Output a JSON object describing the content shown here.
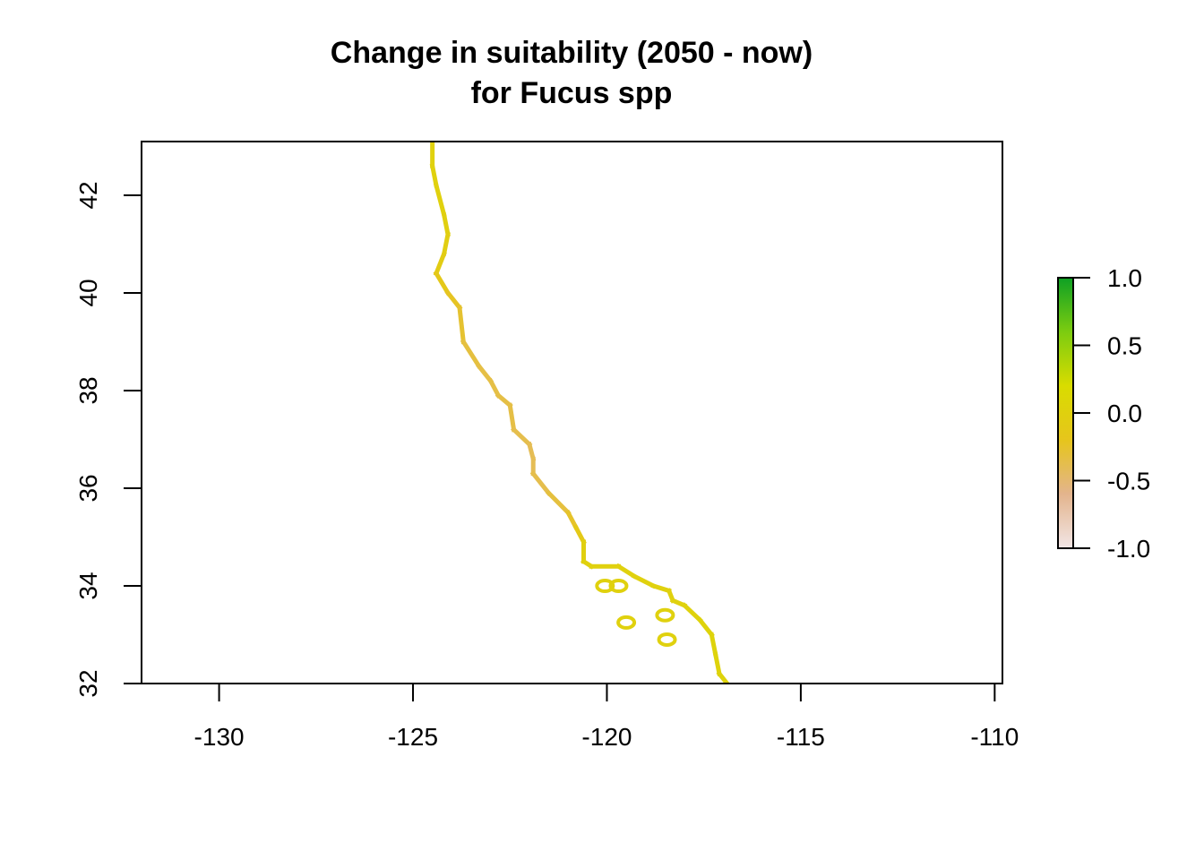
{
  "chart_data": {
    "type": "heatmap",
    "title": "Change in suitability (2050 - now)",
    "subtitle": "for Fucus spp",
    "xlabel": "",
    "ylabel": "",
    "xlim": [
      -132,
      -109.8
    ],
    "ylim": [
      32,
      43.1
    ],
    "x_ticks": [
      -130,
      -125,
      -120,
      -115,
      -110
    ],
    "x_tick_labels": [
      "-130",
      "-125",
      "-120",
      "-115",
      "-110"
    ],
    "y_ticks": [
      32,
      34,
      36,
      38,
      40,
      42
    ],
    "y_tick_labels": [
      "32",
      "34",
      "36",
      "38",
      "40",
      "42"
    ],
    "grid": false,
    "legend": {
      "position": "right",
      "range": [
        -1.0,
        1.0
      ],
      "ticks": [
        1.0,
        0.5,
        0.0,
        -0.5,
        -1.0
      ],
      "tick_labels": [
        "1.0",
        "0.5",
        "0.0",
        "-0.5",
        "-1.0"
      ],
      "colors": [
        "#f2e6e6",
        "#e3b48d",
        "#e6c51c",
        "#d9dc00",
        "#7ccc10",
        "#0ea024"
      ]
    },
    "coastline": [
      {
        "lon": -124.5,
        "lat": 43.1,
        "value": 0.0
      },
      {
        "lon": -124.5,
        "lat": 42.6,
        "value": 0.0
      },
      {
        "lon": -124.4,
        "lat": 42.2,
        "value": 0.0
      },
      {
        "lon": -124.2,
        "lat": 41.6,
        "value": 0.0
      },
      {
        "lon": -124.1,
        "lat": 41.2,
        "value": -0.05
      },
      {
        "lon": -124.2,
        "lat": 40.8,
        "value": -0.05
      },
      {
        "lon": -124.4,
        "lat": 40.4,
        "value": -0.1
      },
      {
        "lon": -124.1,
        "lat": 40.0,
        "value": -0.2
      },
      {
        "lon": -123.8,
        "lat": 39.7,
        "value": -0.25
      },
      {
        "lon": -123.7,
        "lat": 39.0,
        "value": -0.3
      },
      {
        "lon": -123.3,
        "lat": 38.5,
        "value": -0.35
      },
      {
        "lon": -123.0,
        "lat": 38.2,
        "value": -0.35
      },
      {
        "lon": -122.8,
        "lat": 37.9,
        "value": -0.35
      },
      {
        "lon": -122.5,
        "lat": 37.7,
        "value": -0.35
      },
      {
        "lon": -122.4,
        "lat": 37.2,
        "value": -0.35
      },
      {
        "lon": -122.0,
        "lat": 36.9,
        "value": -0.4
      },
      {
        "lon": -121.9,
        "lat": 36.6,
        "value": -0.4
      },
      {
        "lon": -121.9,
        "lat": 36.3,
        "value": -0.4
      },
      {
        "lon": -121.5,
        "lat": 35.9,
        "value": -0.35
      },
      {
        "lon": -121.0,
        "lat": 35.5,
        "value": -0.3
      },
      {
        "lon": -120.8,
        "lat": 35.2,
        "value": -0.2
      },
      {
        "lon": -120.6,
        "lat": 34.9,
        "value": -0.05
      },
      {
        "lon": -120.6,
        "lat": 34.5,
        "value": 0.0
      },
      {
        "lon": -120.4,
        "lat": 34.4,
        "value": 0.0
      },
      {
        "lon": -119.7,
        "lat": 34.4,
        "value": 0.0
      },
      {
        "lon": -119.3,
        "lat": 34.2,
        "value": 0.0
      },
      {
        "lon": -118.8,
        "lat": 34.0,
        "value": 0.0
      },
      {
        "lon": -118.4,
        "lat": 33.9,
        "value": 0.0
      },
      {
        "lon": -118.3,
        "lat": 33.7,
        "value": 0.0
      },
      {
        "lon": -118.0,
        "lat": 33.6,
        "value": 0.0
      },
      {
        "lon": -117.6,
        "lat": 33.3,
        "value": 0.05
      },
      {
        "lon": -117.3,
        "lat": 33.0,
        "value": 0.05
      },
      {
        "lon": -117.2,
        "lat": 32.6,
        "value": 0.05
      },
      {
        "lon": -117.1,
        "lat": 32.2,
        "value": 0.05
      },
      {
        "lon": -116.9,
        "lat": 32.0,
        "value": 0.05
      }
    ],
    "islands": [
      {
        "lon": -120.05,
        "lat": 34.0,
        "value": 0.0
      },
      {
        "lon": -119.7,
        "lat": 34.0,
        "value": 0.0
      },
      {
        "lon": -119.5,
        "lat": 33.25,
        "value": 0.0
      },
      {
        "lon": -118.5,
        "lat": 33.4,
        "value": 0.0
      },
      {
        "lon": -118.45,
        "lat": 32.9,
        "value": 0.0
      }
    ]
  }
}
